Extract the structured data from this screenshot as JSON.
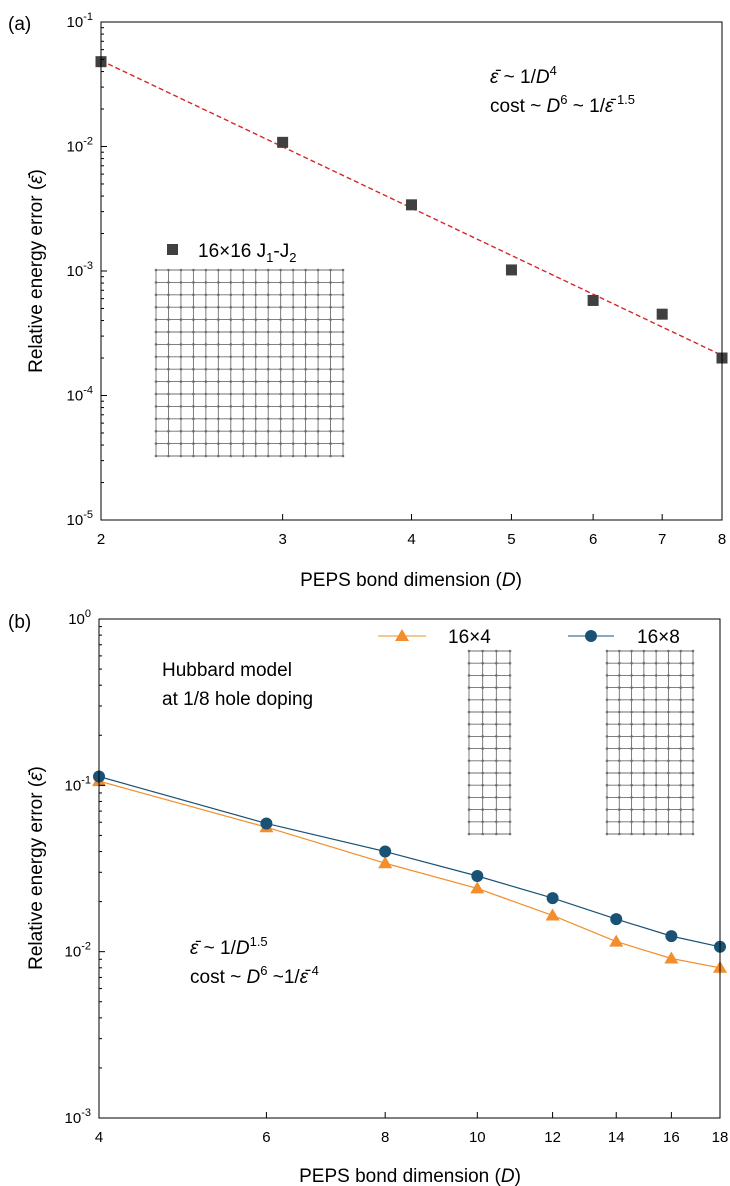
{
  "chart_data": [
    {
      "panel_label": "(a)",
      "type": "scatter",
      "x_scale": "log",
      "y_scale": "log",
      "xlim": [
        2,
        8
      ],
      "ylim": [
        1e-05,
        0.1
      ],
      "xticks": [
        2,
        3,
        4,
        5,
        6,
        7,
        8
      ],
      "xtick_labels": [
        "2",
        "3",
        "4",
        "5",
        "6",
        "7",
        "8"
      ],
      "yticks": [
        1e-05,
        0.0001,
        0.001,
        0.01,
        0.1
      ],
      "ytick_labels": [
        {
          "base": "10",
          "exp": "-5"
        },
        {
          "base": "10",
          "exp": "-4"
        },
        {
          "base": "10",
          "exp": "-3"
        },
        {
          "base": "10",
          "exp": "-2"
        },
        {
          "base": "10",
          "exp": "-1"
        }
      ],
      "xlabel": {
        "text": "PEPS bond dimension (",
        "var": "D",
        "close": ")"
      },
      "ylabel": {
        "text": "Relative energy error (",
        "var": "ε̄",
        "close": ")"
      },
      "series": [
        {
          "name": "16×16 J₁-J₂",
          "name_parts": {
            "main": "16×16 J",
            "sub1": "1",
            "dash": "-J",
            "sub2": "2"
          },
          "marker": "square",
          "color": "#404040",
          "x": [
            2,
            3,
            4,
            5,
            6,
            7,
            8
          ],
          "y": [
            0.048,
            0.0108,
            0.0034,
            0.00102,
            0.00058,
            0.00045,
            0.0002
          ]
        }
      ],
      "fit_line": {
        "color": "#d62728",
        "style": "dashed",
        "x": [
          2,
          8
        ],
        "y": [
          0.049,
          0.00021
        ]
      },
      "annotations": {
        "line1": {
          "prefix": "ε̄",
          "mid": " ~ 1/",
          "var": "D",
          "exp": "4"
        },
        "line2": {
          "prefix": "cost ~ ",
          "var": "D",
          "exp": "6",
          "mid": " ~ 1/",
          "var2": "ε̄",
          "exp2": " 1.5"
        }
      },
      "lattice": {
        "rows": 16,
        "cols": 16,
        "color": "#6e6e6e"
      }
    },
    {
      "panel_label": "(b)",
      "type": "line",
      "x_scale": "log",
      "y_scale": "log",
      "xlim": [
        4,
        18
      ],
      "ylim": [
        0.001,
        1
      ],
      "xticks": [
        4,
        6,
        8,
        10,
        12,
        14,
        16,
        18
      ],
      "xtick_labels": [
        "4",
        "6",
        "8",
        "10",
        "12",
        "14",
        "16",
        "18"
      ],
      "yticks": [
        0.001,
        0.01,
        0.1,
        1
      ],
      "ytick_labels": [
        {
          "base": "10",
          "exp": "-3"
        },
        {
          "base": "10",
          "exp": "-2"
        },
        {
          "base": "10",
          "exp": "-1"
        },
        {
          "base": "10",
          "exp": "0"
        }
      ],
      "xlabel": {
        "text": "PEPS bond dimension (",
        "var": "D",
        "close": ")"
      },
      "ylabel": {
        "text": "Relative energy error (",
        "var": "ε̄",
        "close": ")"
      },
      "series": [
        {
          "name": "16×4",
          "marker": "triangle",
          "color": "#f28e2b",
          "x": [
            4,
            6,
            8,
            10,
            12,
            14,
            16,
            18
          ],
          "y": [
            0.106,
            0.056,
            0.034,
            0.024,
            0.0165,
            0.0115,
            0.0091,
            0.008
          ]
        },
        {
          "name": "16×8",
          "marker": "circle",
          "color": "#1a5276",
          "x": [
            4,
            6,
            8,
            10,
            12,
            14,
            16,
            18
          ],
          "y": [
            0.113,
            0.059,
            0.04,
            0.0285,
            0.021,
            0.0157,
            0.0124,
            0.0107
          ]
        }
      ],
      "annotations": {
        "model": "Hubbard model",
        "doping": "at 1/8 hole doping",
        "line1": {
          "prefix": "ε̄",
          "mid": " ~ 1/",
          "var": "D",
          "exp": "1.5"
        },
        "line2": {
          "prefix": "cost ~ ",
          "var": "D",
          "exp": "6",
          "mid": " ~1/",
          "var2": "ε̄",
          "exp2": " 4"
        }
      },
      "lattices": [
        {
          "rows": 16,
          "cols": 4,
          "color": "#6e6e6e"
        },
        {
          "rows": 16,
          "cols": 8,
          "color": "#6e6e6e"
        }
      ]
    }
  ]
}
